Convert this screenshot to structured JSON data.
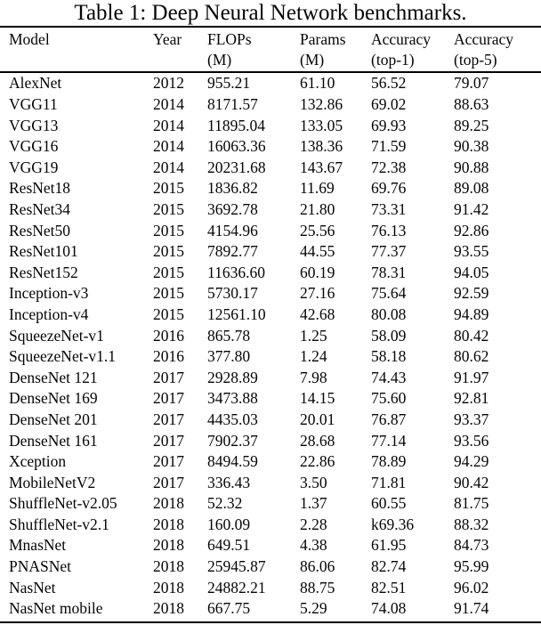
{
  "title": "Table 1: Deep Neural Network benchmarks.",
  "table": {
    "column_keys": [
      "model",
      "year",
      "flops_m",
      "params_m",
      "acc_top1",
      "acc_top5"
    ],
    "columns": [
      {
        "label": "Model",
        "sub": ""
      },
      {
        "label": "Year",
        "sub": ""
      },
      {
        "label": "FLOPs",
        "sub": "(M)"
      },
      {
        "label": "Params",
        "sub": "(M)"
      },
      {
        "label": "Accuracy",
        "sub": "(top-1)"
      },
      {
        "label": "Accuracy",
        "sub": "(top-5)"
      }
    ],
    "rows": [
      [
        "AlexNet",
        "2012",
        "955.21",
        "61.10",
        "56.52",
        "79.07"
      ],
      [
        "VGG11",
        "2014",
        "8171.57",
        "132.86",
        "69.02",
        "88.63"
      ],
      [
        "VGG13",
        "2014",
        "11895.04",
        "133.05",
        "69.93",
        "89.25"
      ],
      [
        "VGG16",
        "2014",
        "16063.36",
        "138.36",
        "71.59",
        "90.38"
      ],
      [
        "VGG19",
        "2014",
        "20231.68",
        "143.67",
        "72.38",
        "90.88"
      ],
      [
        "ResNet18",
        "2015",
        "1836.82",
        "11.69",
        "69.76",
        "89.08"
      ],
      [
        "ResNet34",
        "2015",
        "3692.78",
        "21.80",
        "73.31",
        "91.42"
      ],
      [
        "ResNet50",
        "2015",
        "4154.96",
        "25.56",
        "76.13",
        "92.86"
      ],
      [
        "ResNet101",
        "2015",
        "7892.77",
        "44.55",
        "77.37",
        "93.55"
      ],
      [
        "ResNet152",
        "2015",
        "11636.60",
        "60.19",
        "78.31",
        "94.05"
      ],
      [
        "Inception-v3",
        "2015",
        "5730.17",
        "27.16",
        "75.64",
        "92.59"
      ],
      [
        "Inception-v4",
        "2015",
        "12561.10",
        "42.68",
        "80.08",
        "94.89"
      ],
      [
        "SqueezeNet-v1",
        "2016",
        "865.78",
        "1.25",
        "58.09",
        "80.42"
      ],
      [
        "SqueezeNet-v1.1",
        "2016",
        "377.80",
        "1.24",
        "58.18",
        "80.62"
      ],
      [
        "DenseNet 121",
        "2017",
        "2928.89",
        "7.98",
        "74.43",
        "91.97"
      ],
      [
        "DenseNet 169",
        "2017",
        "3473.88",
        "14.15",
        "75.60",
        "92.81"
      ],
      [
        "DenseNet 201",
        "2017",
        "4435.03",
        "20.01",
        "76.87",
        "93.37"
      ],
      [
        "DenseNet 161",
        "2017",
        "7902.37",
        "28.68",
        "77.14",
        "93.56"
      ],
      [
        "Xception",
        "2017",
        "8494.59",
        "22.86",
        "78.89",
        "94.29"
      ],
      [
        "MobileNetV2",
        "2017",
        "336.43",
        "3.50",
        "71.81",
        "90.42"
      ],
      [
        "ShuffleNet-v2.05",
        "2018",
        "52.32",
        "1.37",
        "60.55",
        "81.75"
      ],
      [
        "ShuffleNet-v2.1",
        "2018",
        "160.09",
        "2.28",
        "k69.36",
        "88.32"
      ],
      [
        "MnasNet",
        "2018",
        "649.51",
        "4.38",
        "61.95",
        "84.73"
      ],
      [
        "PNASNet",
        "2018",
        "25945.87",
        "86.06",
        "82.74",
        "95.99"
      ],
      [
        "NasNet",
        "2018",
        "24882.21",
        "88.75",
        "82.51",
        "96.02"
      ],
      [
        "NasNet mobile",
        "2018",
        "667.75",
        "5.29",
        "74.08",
        "91.74"
      ]
    ]
  }
}
